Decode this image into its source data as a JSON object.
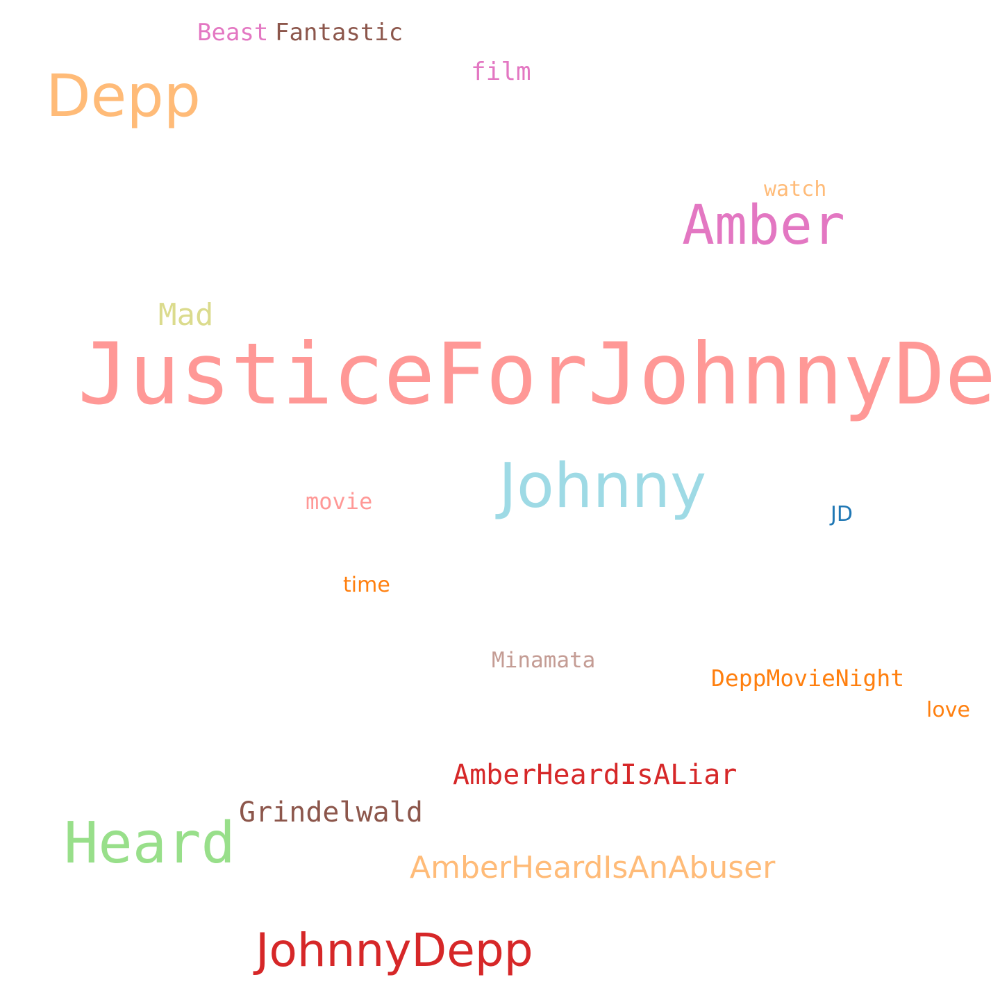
{
  "words": [
    {
      "text": "JusticeForJohnnyDepp",
      "color": "#ff9896"
    },
    {
      "text": "Johnny",
      "color": "#9edae5"
    },
    {
      "text": "Amber",
      "color": "#e377c2"
    },
    {
      "text": "Depp",
      "color": "#ffbb78"
    },
    {
      "text": "Heard",
      "color": "#98df8a"
    },
    {
      "text": "JohnnyDepp",
      "color": "#d62728"
    },
    {
      "text": "AmberHeardIsAnAbuser",
      "color": "#ffbb78"
    },
    {
      "text": "AmberHeardIsALiar",
      "color": "#d62728"
    },
    {
      "text": "Grindelwald",
      "color": "#8c564b"
    },
    {
      "text": "Mad",
      "color": "#dbdb8d"
    },
    {
      "text": "DeppMovieNight",
      "color": "#ff7f0e"
    },
    {
      "text": "Fantastic",
      "color": "#8c564b"
    },
    {
      "text": "Beast",
      "color": "#e377c2"
    },
    {
      "text": "film",
      "color": "#e377c2"
    },
    {
      "text": "Minamata",
      "color": "#c49c94"
    },
    {
      "text": "watch",
      "color": "#ffbb78"
    },
    {
      "text": "movie",
      "color": "#ff9896"
    },
    {
      "text": "time",
      "color": "#ff7f0e"
    },
    {
      "text": "love",
      "color": "#ff7f0e"
    },
    {
      "text": "JD",
      "color": "#1f77b4"
    }
  ]
}
